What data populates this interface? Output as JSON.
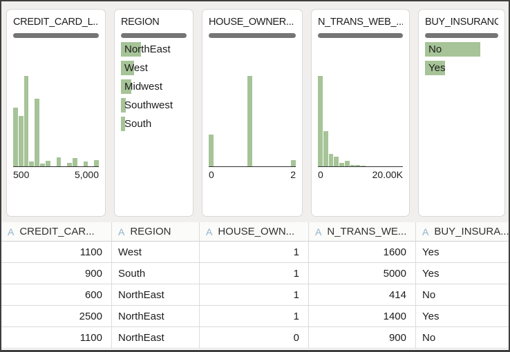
{
  "colors": {
    "bar_green": "#a6c497",
    "quality_bar_gray": "#757575",
    "type_letter_blue": "#8fb2ca",
    "panel_background": "#f0efee",
    "axis_line": "#2d2d2d"
  },
  "columns": [
    {
      "card_title": "CREDIT_CARD_L...",
      "table_header": "CREDIT_CAR...",
      "type_letter": "A",
      "align": "right",
      "chart_data": {
        "type": "histogram",
        "x_min_label": "500",
        "x_max_label": "5,000",
        "bar_heights": [
          0.65,
          0.56,
          1.0,
          0.05,
          0.75,
          0.03,
          0.06,
          0,
          0.1,
          0,
          0.04,
          0.09,
          0,
          0.05,
          0,
          0.07
        ]
      }
    },
    {
      "card_title": "REGION",
      "table_header": "REGION",
      "type_letter": "A",
      "align": "left",
      "chart_data": {
        "type": "bar",
        "items": [
          {
            "label": "NorthEast",
            "width_frac": 0.3
          },
          {
            "label": "West",
            "width_frac": 0.2
          },
          {
            "label": "Midwest",
            "width_frac": 0.155
          },
          {
            "label": "Southwest",
            "width_frac": 0.072
          },
          {
            "label": "South",
            "width_frac": 0.065
          }
        ]
      }
    },
    {
      "card_title": "HOUSE_OWNER...",
      "table_header": "HOUSE_OWN...",
      "type_letter": "A",
      "align": "right",
      "chart_data": {
        "type": "histogram",
        "x_min_label": "0",
        "x_max_label": "2",
        "bar_heights": [
          0.35,
          0,
          0,
          0,
          0,
          0,
          0,
          1.0,
          0,
          0,
          0,
          0,
          0,
          0,
          0,
          0.07
        ]
      }
    },
    {
      "card_title": "N_TRANS_WEB_...",
      "table_header": "N_TRANS_WE...",
      "type_letter": "A",
      "align": "right",
      "chart_data": {
        "type": "histogram",
        "x_min_label": "0",
        "x_max_label": "20.00K",
        "bar_heights": [
          1.0,
          0.39,
          0.14,
          0.11,
          0.035,
          0.06,
          0.015,
          0.012,
          0.01,
          0,
          0,
          0,
          0,
          0,
          0,
          0
        ]
      }
    },
    {
      "card_title": "BUY_INSURANCE",
      "table_header": "BUY_INSURA...",
      "type_letter": "A",
      "align": "left",
      "chart_data": {
        "type": "bar",
        "items": [
          {
            "label": "No",
            "width_frac": 0.75
          },
          {
            "label": "Yes",
            "width_frac": 0.27
          }
        ]
      }
    }
  ],
  "rows": [
    [
      "1100",
      "West",
      "1",
      "1600",
      "Yes"
    ],
    [
      "900",
      "South",
      "1",
      "5000",
      "Yes"
    ],
    [
      "600",
      "NorthEast",
      "1",
      "414",
      "No"
    ],
    [
      "2500",
      "NorthEast",
      "1",
      "1400",
      "Yes"
    ],
    [
      "1100",
      "NorthEast",
      "0",
      "900",
      "No"
    ]
  ]
}
